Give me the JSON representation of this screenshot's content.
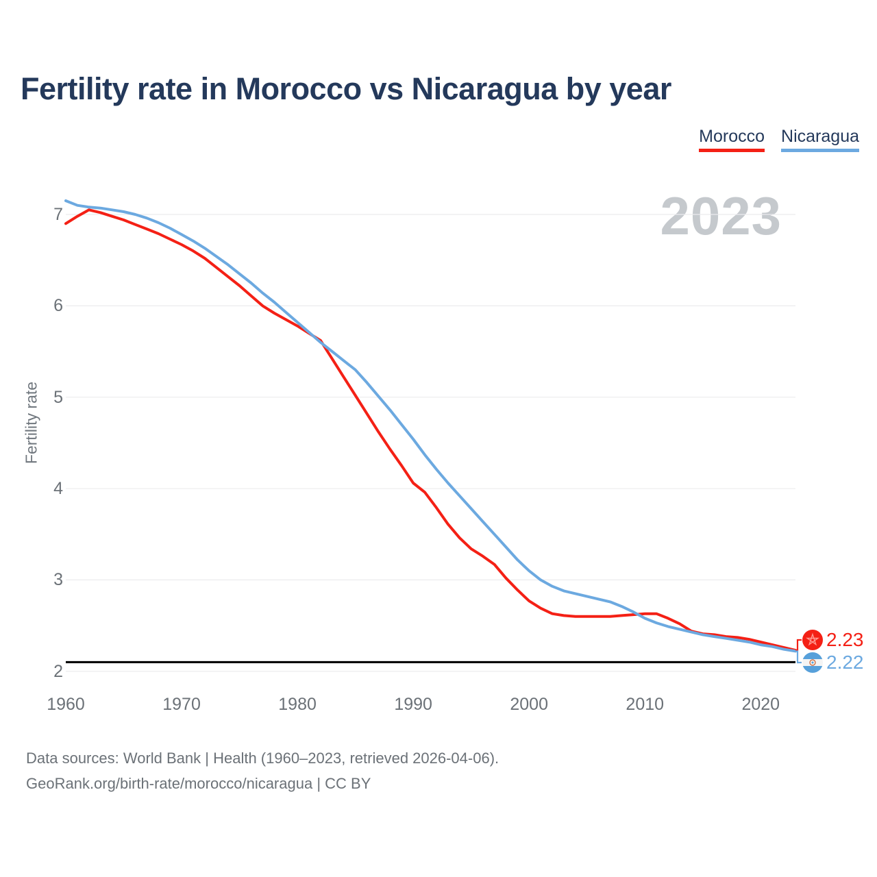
{
  "header": {
    "title": "Fertility rate in Morocco vs Nicaragua by year"
  },
  "legend": [
    {
      "label": "Morocco",
      "color": "#f42015"
    },
    {
      "label": "Nicaragua",
      "color": "#6ca9e0"
    }
  ],
  "watermark": "2023",
  "chart_data": {
    "type": "line",
    "title": "Fertility rate in Morocco vs Nicaragua by year",
    "xlabel": "",
    "ylabel": "Fertility rate",
    "grid": true,
    "legend_position": "top-right",
    "xlim": [
      1960,
      2023
    ],
    "ylim": [
      2,
      7.3
    ],
    "y_ticks": [
      7,
      6,
      5,
      4,
      3,
      2
    ],
    "x_ticks": [
      1960,
      1970,
      1980,
      1990,
      2000,
      2010,
      2020
    ],
    "reference_line": 2.1,
    "x": [
      1960,
      1961,
      1962,
      1963,
      1964,
      1965,
      1966,
      1967,
      1968,
      1969,
      1970,
      1971,
      1972,
      1973,
      1974,
      1975,
      1976,
      1977,
      1978,
      1979,
      1980,
      1981,
      1982,
      1983,
      1984,
      1985,
      1986,
      1987,
      1988,
      1989,
      1990,
      1991,
      1992,
      1993,
      1994,
      1995,
      1996,
      1997,
      1998,
      1999,
      2000,
      2001,
      2002,
      2003,
      2004,
      2005,
      2006,
      2007,
      2008,
      2009,
      2010,
      2011,
      2012,
      2013,
      2014,
      2015,
      2016,
      2017,
      2018,
      2019,
      2020,
      2021,
      2022,
      2023
    ],
    "series": [
      {
        "name": "Morocco",
        "color": "#f42015",
        "end_label": "2.23",
        "end_value": 2.23,
        "values": [
          6.9,
          6.98,
          7.05,
          7.02,
          6.98,
          6.94,
          6.89,
          6.84,
          6.79,
          6.73,
          6.67,
          6.6,
          6.52,
          6.42,
          6.32,
          6.22,
          6.11,
          6.0,
          5.92,
          5.85,
          5.78,
          5.7,
          5.62,
          5.42,
          5.22,
          5.02,
          4.82,
          4.62,
          4.43,
          4.25,
          4.06,
          3.96,
          3.79,
          3.61,
          3.46,
          3.34,
          3.26,
          3.17,
          3.02,
          2.89,
          2.77,
          2.69,
          2.63,
          2.61,
          2.6,
          2.6,
          2.6,
          2.6,
          2.61,
          2.62,
          2.63,
          2.63,
          2.58,
          2.52,
          2.44,
          2.41,
          2.4,
          2.38,
          2.37,
          2.35,
          2.32,
          2.29,
          2.26,
          2.23
        ]
      },
      {
        "name": "Nicaragua",
        "color": "#6ca9e0",
        "end_label": "2.22",
        "end_value": 2.22,
        "values": [
          7.15,
          7.1,
          7.08,
          7.07,
          7.05,
          7.03,
          7.0,
          6.96,
          6.91,
          6.85,
          6.78,
          6.71,
          6.63,
          6.54,
          6.45,
          6.35,
          6.25,
          6.14,
          6.04,
          5.93,
          5.82,
          5.71,
          5.6,
          5.5,
          5.4,
          5.3,
          5.16,
          5.01,
          4.86,
          4.7,
          4.54,
          4.37,
          4.21,
          4.06,
          3.92,
          3.78,
          3.64,
          3.5,
          3.36,
          3.22,
          3.1,
          3.0,
          2.93,
          2.88,
          2.85,
          2.82,
          2.79,
          2.76,
          2.71,
          2.65,
          2.58,
          2.53,
          2.49,
          2.46,
          2.43,
          2.4,
          2.38,
          2.36,
          2.34,
          2.32,
          2.29,
          2.27,
          2.24,
          2.22
        ]
      }
    ]
  },
  "footer": {
    "line1": "Data sources: World Bank | Health (1960–2023, retrieved 2026-04-06).",
    "line2": "GeoRank.org/birth-rate/morocco/nicaragua | CC BY"
  }
}
